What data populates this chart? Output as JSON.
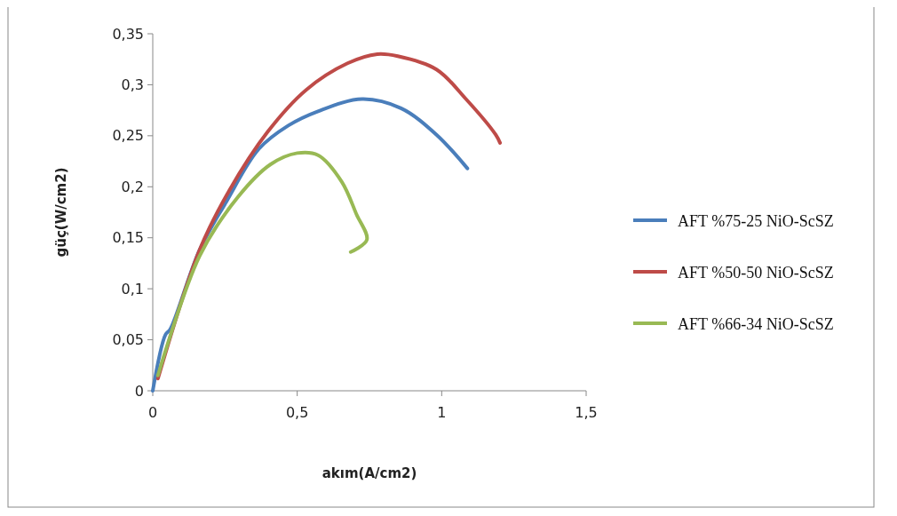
{
  "chart_data": {
    "type": "line",
    "xlabel": "akım(A/cm2)",
    "ylabel": "güç(W/cm2)",
    "xlim": [
      0,
      1.5
    ],
    "ylim": [
      0,
      0.35
    ],
    "xticks": [
      0,
      {
        "value": 0.5,
        "label": "0,5"
      },
      1,
      {
        "value": 1.5,
        "label": "1,5"
      }
    ],
    "yticks": [
      0,
      {
        "value": 0.05,
        "label": "0,05"
      },
      {
        "value": 0.1,
        "label": "0,1"
      },
      {
        "value": 0.15,
        "label": "0,15"
      },
      {
        "value": 0.2,
        "label": "0,2"
      },
      {
        "value": 0.25,
        "label": "0,25"
      },
      {
        "value": 0.3,
        "label": "0,3"
      },
      {
        "value": 0.35,
        "label": "0,35"
      }
    ],
    "grid": false,
    "legend": "right",
    "marker": "none",
    "line_style": "solid",
    "series": [
      {
        "name": "AFT %75-25 NiO-ScSZ",
        "color": "#4a7ebb",
        "x": [
          0,
          0.044,
          0.06,
          0.162,
          0.254,
          0.367,
          0.469,
          0.572,
          0.725,
          0.859,
          0.982,
          1.089
        ],
        "values": [
          0,
          0.055,
          0.06,
          0.138,
          0.185,
          0.237,
          0.26,
          0.274,
          0.286,
          0.277,
          0.251,
          0.218
        ]
      },
      {
        "name": "AFT %50-50 NiO-ScSZ",
        "color": "#be4b48",
        "x": [
          0.018,
          0.162,
          0.264,
          0.398,
          0.531,
          0.674,
          0.777,
          0.848,
          0.982,
          1.084,
          1.187,
          1.202
        ],
        "values": [
          0.012,
          0.138,
          0.196,
          0.254,
          0.295,
          0.321,
          0.33,
          0.328,
          0.315,
          0.286,
          0.251,
          0.243
        ]
      },
      {
        "name": "AFT %66-34 NiO-ScSZ",
        "color": "#98b954",
        "x": [
          0.018,
          0.162,
          0.295,
          0.408,
          0.5,
          0.572,
          0.654,
          0.705,
          0.741,
          0.685
        ],
        "values": [
          0.015,
          0.132,
          0.19,
          0.222,
          0.233,
          0.231,
          0.205,
          0.173,
          0.148,
          0.136
        ]
      }
    ]
  }
}
